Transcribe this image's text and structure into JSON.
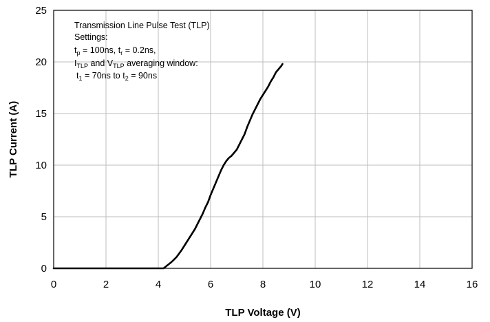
{
  "chart_data": {
    "type": "line",
    "title": "",
    "xlabel": "TLP Voltage (V)",
    "ylabel": "TLP Current (A)",
    "xlim": [
      0,
      16
    ],
    "ylim": [
      0,
      25
    ],
    "xticks": [
      0,
      2,
      4,
      6,
      8,
      10,
      12,
      14,
      16
    ],
    "yticks": [
      0,
      5,
      10,
      15,
      20,
      25
    ],
    "grid": true,
    "legend": "none",
    "line_color": "#000000",
    "annotation": {
      "line1": "Transmission Line Pulse Test (TLP)",
      "line2": "Settings:",
      "line3": {
        "a": "t",
        "a_sub": "p",
        "b": " = 100ns, t",
        "b_sub": "r",
        "c": " = 0.2ns,"
      },
      "line4": {
        "a": "I",
        "a_sub": "TLP",
        "b": " and V",
        "b_sub": "TLP",
        "c": " averaging window:"
      },
      "line5": {
        "a": "t",
        "a_sub": "1",
        "b": " = 70ns to t",
        "b_sub": "2",
        "c": " = 90ns"
      }
    },
    "series": [
      {
        "x": [
          0.0,
          4.2,
          4.3,
          4.4,
          4.5,
          4.6,
          4.7,
          4.8,
          4.9,
          5.0,
          5.1,
          5.2,
          5.3,
          5.4,
          5.5,
          5.6,
          5.7,
          5.8,
          5.9,
          6.0,
          6.1,
          6.2,
          6.3,
          6.4,
          6.5,
          6.6,
          6.7,
          6.8,
          6.9,
          7.0,
          7.1,
          7.2,
          7.3,
          7.4,
          7.5,
          7.6,
          7.7,
          7.8,
          7.9,
          8.0,
          8.1,
          8.2,
          8.3,
          8.4,
          8.5,
          8.6,
          8.7,
          8.75
        ],
        "y": [
          0.0,
          0.0,
          0.2,
          0.4,
          0.6,
          0.85,
          1.1,
          1.45,
          1.8,
          2.2,
          2.6,
          3.0,
          3.4,
          3.8,
          4.3,
          4.8,
          5.3,
          5.9,
          6.4,
          7.1,
          7.7,
          8.3,
          8.9,
          9.5,
          10.0,
          10.4,
          10.7,
          10.9,
          11.2,
          11.5,
          12.0,
          12.5,
          13.0,
          13.7,
          14.3,
          14.9,
          15.4,
          15.9,
          16.4,
          16.8,
          17.2,
          17.6,
          18.1,
          18.5,
          19.0,
          19.3,
          19.6,
          19.8
        ]
      }
    ]
  }
}
